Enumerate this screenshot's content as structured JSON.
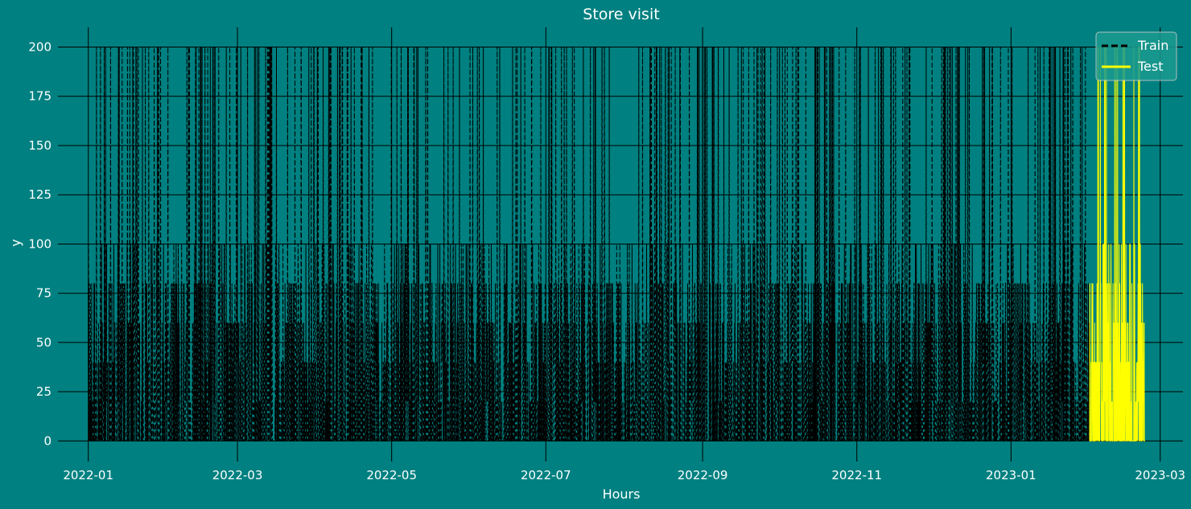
{
  "chart_data": {
    "type": "line",
    "title": "Store visit",
    "xlabel": "Hours",
    "ylabel": "y",
    "x_ticks": [
      "2022-01",
      "2022-03",
      "2022-05",
      "2022-07",
      "2022-09",
      "2022-11",
      "2023-01",
      "2023-03"
    ],
    "y_ticks": [
      0,
      25,
      50,
      75,
      100,
      125,
      150,
      175,
      200
    ],
    "xlim": [
      "2021-12-20",
      "2023-03-10"
    ],
    "ylim": [
      -8,
      210
    ],
    "grid": true,
    "legend_position": "top-right",
    "series": [
      {
        "name": "Train",
        "style": "dashed",
        "color": "#000000",
        "x_range": [
          "2022-01-01",
          "2023-02-01"
        ],
        "typical_range": [
          0,
          100
        ],
        "spike_max": 200,
        "description_values": [
          0,
          20,
          40,
          60,
          80,
          100,
          200
        ]
      },
      {
        "name": "Test",
        "style": "solid",
        "color": "#ffff00",
        "x_range": [
          "2023-02-01",
          "2023-02-23"
        ],
        "typical_range": [
          0,
          100
        ],
        "spike_max": 200,
        "description_values": [
          0,
          20,
          50,
          80,
          100,
          200
        ]
      }
    ]
  },
  "colors": {
    "background": "#008080",
    "train": "#000000",
    "test": "#ffff00",
    "grid": "#000000",
    "text": "#ffffff"
  }
}
